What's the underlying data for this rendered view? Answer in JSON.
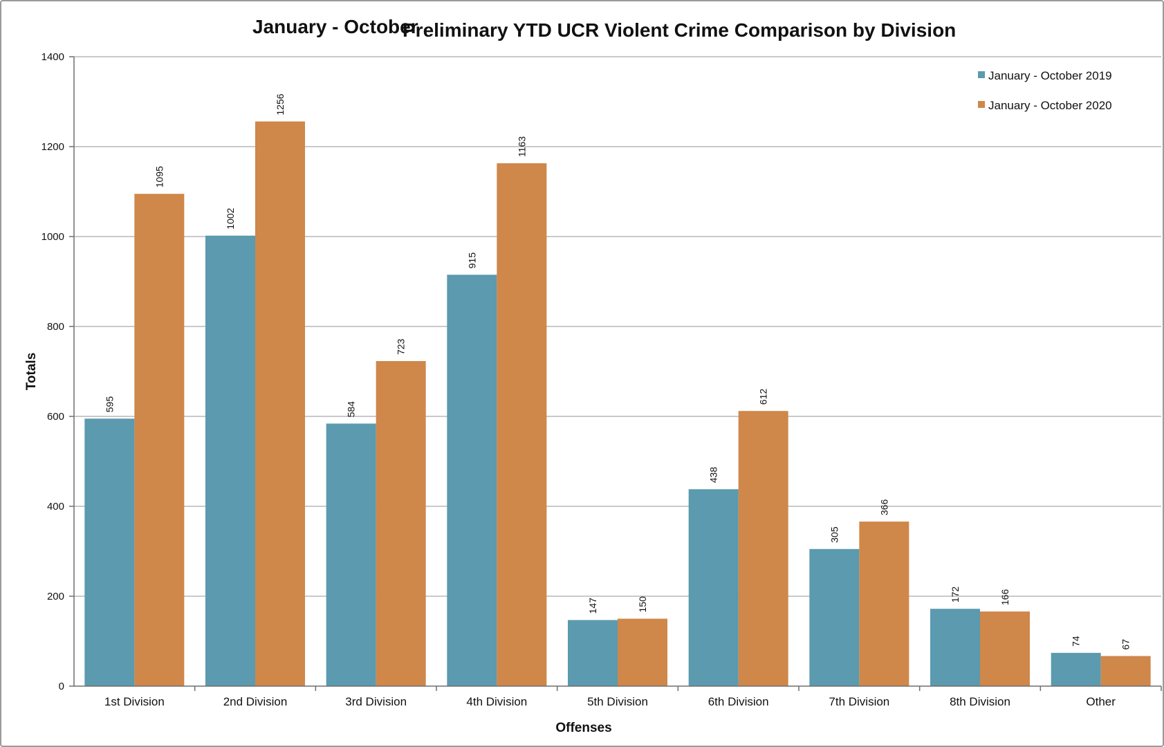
{
  "chart_data": {
    "type": "bar",
    "title_part_1": "January - October",
    "title_part_2": "Preliminary YTD UCR Violent Crime Comparison by Division",
    "xlabel": "Offenses",
    "ylabel": "Totals",
    "ylim": [
      0,
      1400
    ],
    "yticks": [
      0,
      200,
      400,
      600,
      800,
      1000,
      1200,
      1400
    ],
    "grid": true,
    "legend_position": "top-right",
    "categories": [
      "1st Division",
      "2nd Division",
      "3rd Division",
      "4th Division",
      "5th Division",
      "6th Division",
      "7th Division",
      "8th Division",
      "Other"
    ],
    "series": [
      {
        "name": "January - October 2019",
        "color": "#5b9aaf",
        "values": [
          595,
          1002,
          584,
          915,
          147,
          438,
          305,
          172,
          74
        ]
      },
      {
        "name": "January - October 2020",
        "color": "#cf874a",
        "values": [
          1095,
          1256,
          723,
          1163,
          150,
          612,
          366,
          166,
          67
        ]
      }
    ]
  }
}
